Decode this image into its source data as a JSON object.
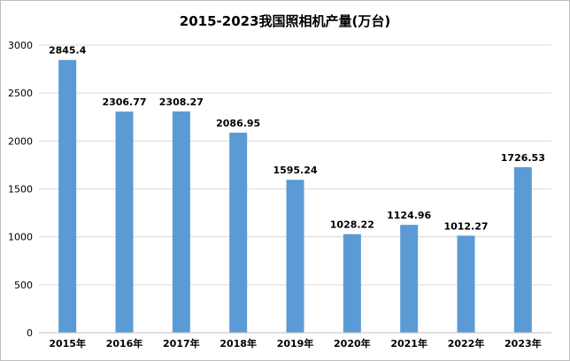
{
  "chart_data": {
    "type": "bar",
    "title": "2015-2023我国照相机产量(万台)",
    "categories": [
      "2015年",
      "2016年",
      "2017年",
      "2018年",
      "2019年",
      "2020年",
      "2021年",
      "2022年",
      "2023年"
    ],
    "values": [
      2845.4,
      2306.77,
      2308.27,
      2086.95,
      1595.24,
      1028.22,
      1124.96,
      1012.27,
      1726.53
    ],
    "value_labels": [
      "2845.4",
      "2306.77",
      "2308.27",
      "2086.95",
      "1595.24",
      "1028.22",
      "1124.96",
      "1012.27",
      "1726.53"
    ],
    "xlabel": "",
    "ylabel": "",
    "ylim": [
      0,
      3000
    ],
    "yticks": [
      "0",
      "500",
      "1000",
      "1500",
      "2000",
      "2500",
      "3000"
    ],
    "grid": true,
    "legend": "none",
    "bar_color": "#5B9BD5"
  }
}
